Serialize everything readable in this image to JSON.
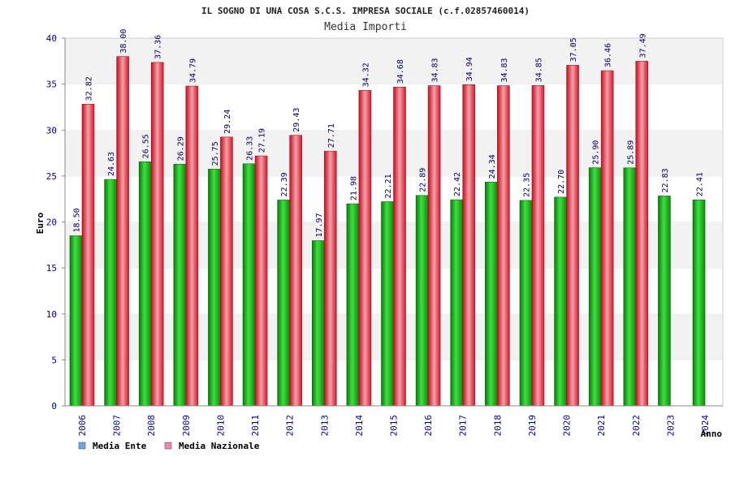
{
  "chart_data": {
    "type": "bar",
    "title": "IL SOGNO DI UNA COSA S.C.S. IMPRESA SOCIALE (c.f.02857460014)",
    "subtitle": "Media Importi",
    "xlabel": "Anno",
    "ylabel": "Euro",
    "ylim": [
      0,
      40
    ],
    "yticks": [
      0,
      5,
      10,
      15,
      20,
      25,
      30,
      35,
      40
    ],
    "grid": true,
    "legend_position": "bottom-left",
    "categories": [
      "2006",
      "2007",
      "2008",
      "2009",
      "2010",
      "2011",
      "2012",
      "2013",
      "2014",
      "2015",
      "2016",
      "2017",
      "2018",
      "2019",
      "2020",
      "2021",
      "2022",
      "2023",
      "2024"
    ],
    "series": [
      {
        "name": "Media Ente",
        "color": "#22bb22",
        "legend_color": "#66aaee",
        "values": [
          18.5,
          24.63,
          26.55,
          26.29,
          25.75,
          26.33,
          22.39,
          17.97,
          21.98,
          22.21,
          22.89,
          22.42,
          24.34,
          22.35,
          22.7,
          25.9,
          25.89,
          22.83,
          22.41
        ],
        "labels": [
          "18.50",
          "24.63",
          "26.55",
          "26.29",
          "25.75",
          "26.33",
          "22.39",
          "17.97",
          "21.98",
          "22.21",
          "22.89",
          "22.42",
          "24.34",
          "22.35",
          "22.70",
          "25.90",
          "25.89",
          "22.83",
          "22.41"
        ]
      },
      {
        "name": "Media Nazionale",
        "color": "#ee2233",
        "legend_color": "#ee88aa",
        "values": [
          32.82,
          38.0,
          37.36,
          34.79,
          29.24,
          27.19,
          29.43,
          27.71,
          34.32,
          34.68,
          34.83,
          34.94,
          34.83,
          34.85,
          37.05,
          36.46,
          37.49,
          null,
          null
        ],
        "labels": [
          "32.82",
          "38.00",
          "37.36",
          "34.79",
          "29.24",
          "27.19",
          "29.43",
          "27.71",
          "34.32",
          "34.68",
          "34.83",
          "34.94",
          "34.83",
          "34.85",
          "37.05",
          "36.46",
          "37.49",
          null,
          null
        ]
      }
    ]
  }
}
